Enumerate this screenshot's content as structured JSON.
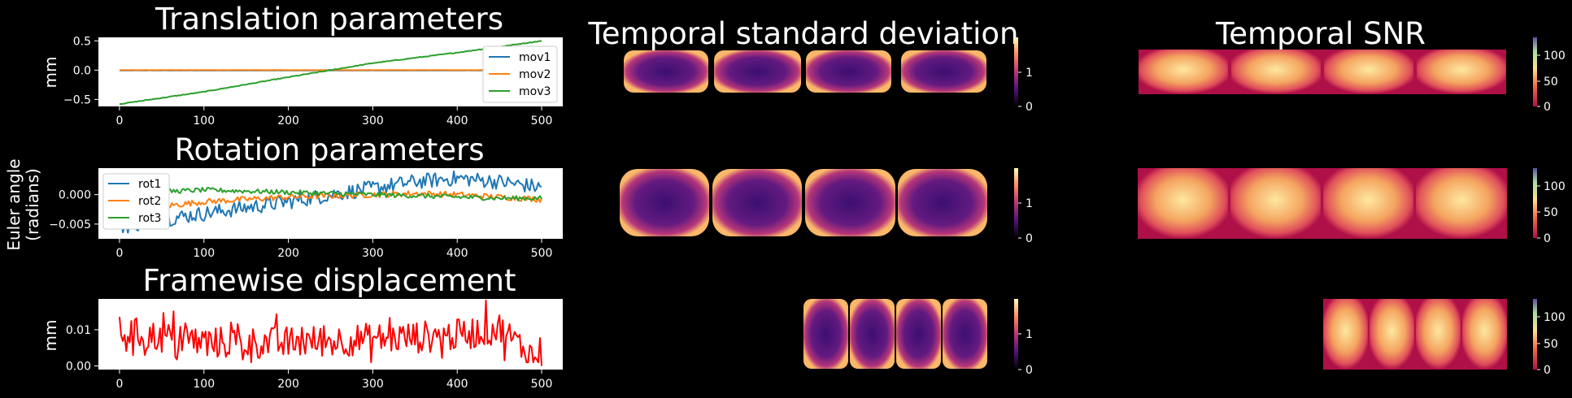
{
  "colors": {
    "background": "#000000",
    "mov1": "#1f77b4",
    "mov2": "#ff7f0e",
    "mov3": "#2ca02c",
    "rot1": "#1f77b4",
    "rot2": "#ff7f0e",
    "rot3": "#2ca02c",
    "fd": "#ff0000"
  },
  "labels": {
    "euler_angle_line1": "Euler angle",
    "euler_angle_line2": "(radians)"
  },
  "chart_data": [
    {
      "id": "translation",
      "type": "line",
      "title": "Translation parameters",
      "ylabel": "mm",
      "xlim": [
        -25,
        525
      ],
      "ylim": [
        -0.62,
        0.56
      ],
      "xticks": [
        0,
        100,
        200,
        300,
        400,
        500
      ],
      "yticks": [
        -0.5,
        0.0,
        0.5
      ],
      "ytick_labels": [
        "−0.5",
        "0.0",
        "0.5"
      ],
      "legend": "top-right",
      "series": [
        {
          "name": "mov1",
          "color": "#1f77b4",
          "x": [
            0,
            500
          ],
          "y": [
            -0.005,
            -0.005
          ]
        },
        {
          "name": "mov2",
          "color": "#ff7f0e",
          "x": [
            0,
            500
          ],
          "y": [
            0.0,
            0.0
          ]
        },
        {
          "name": "mov3",
          "color": "#2ca02c",
          "x": [
            0,
            100,
            200,
            250,
            300,
            400,
            500
          ],
          "y": [
            -0.58,
            -0.37,
            -0.12,
            0.0,
            0.12,
            0.3,
            0.5
          ]
        }
      ]
    },
    {
      "id": "rotation",
      "type": "line",
      "title": "Rotation parameters",
      "ylabel": "",
      "xlim": [
        -25,
        525
      ],
      "ylim": [
        -0.0075,
        0.0045
      ],
      "xticks": [
        0,
        100,
        200,
        300,
        400,
        500
      ],
      "yticks": [
        -0.005,
        0.0
      ],
      "ytick_labels": [
        "−0.005",
        "0.000"
      ],
      "legend": "top-left",
      "series": [
        {
          "name": "rot1",
          "color": "#1f77b4",
          "x": [
            0,
            50,
            100,
            150,
            200,
            250,
            300,
            350,
            400,
            450,
            500
          ],
          "y": [
            -0.0055,
            -0.0042,
            -0.0032,
            -0.0022,
            -0.0012,
            0.0,
            0.0011,
            0.0022,
            0.0028,
            0.0022,
            0.0012
          ]
        },
        {
          "name": "rot2",
          "color": "#ff7f0e",
          "x": [
            0,
            50,
            100,
            150,
            200,
            250,
            300,
            350,
            400,
            450,
            500
          ],
          "y": [
            -0.0025,
            -0.002,
            -0.0012,
            -0.0008,
            -0.0004,
            -0.0002,
            0.0,
            0.0002,
            0.0,
            -0.0004,
            -0.0008
          ]
        },
        {
          "name": "rot3",
          "color": "#2ca02c",
          "x": [
            0,
            50,
            100,
            150,
            200,
            250,
            300,
            350,
            400,
            450,
            500
          ],
          "y": [
            0.0003,
            0.0005,
            0.0008,
            0.0006,
            0.0004,
            0.0002,
            0.0,
            -0.0002,
            -0.0004,
            -0.0006,
            -0.0006
          ]
        }
      ]
    },
    {
      "id": "framewise",
      "type": "line",
      "title": "Framewise displacement",
      "ylabel": "mm",
      "xlim": [
        -25,
        525
      ],
      "ylim": [
        -0.001,
        0.0185
      ],
      "xticks": [
        0,
        100,
        200,
        300,
        400,
        500
      ],
      "yticks": [
        0.0,
        0.01
      ],
      "ytick_labels": [
        "0.00",
        "0.01"
      ],
      "series": [
        {
          "name": "",
          "color": "#ff0000",
          "x": [
            0,
            100,
            200,
            300,
            400,
            450,
            500
          ],
          "y": [
            0.009,
            0.006,
            0.006,
            0.007,
            0.008,
            0.01,
            0.0
          ]
        }
      ]
    },
    {
      "id": "temporal_std",
      "type": "heatmap",
      "title": "Temporal standard deviation",
      "colorbar_ticks": [
        0,
        1
      ],
      "colorbar_range": [
        0,
        1.9
      ],
      "colormap": "magma"
    },
    {
      "id": "temporal_snr",
      "type": "heatmap",
      "title": "Temporal SNR",
      "colorbar_ticks": [
        0,
        50,
        100
      ],
      "colorbar_range": [
        0,
        135
      ],
      "colormap": "spectral"
    }
  ]
}
